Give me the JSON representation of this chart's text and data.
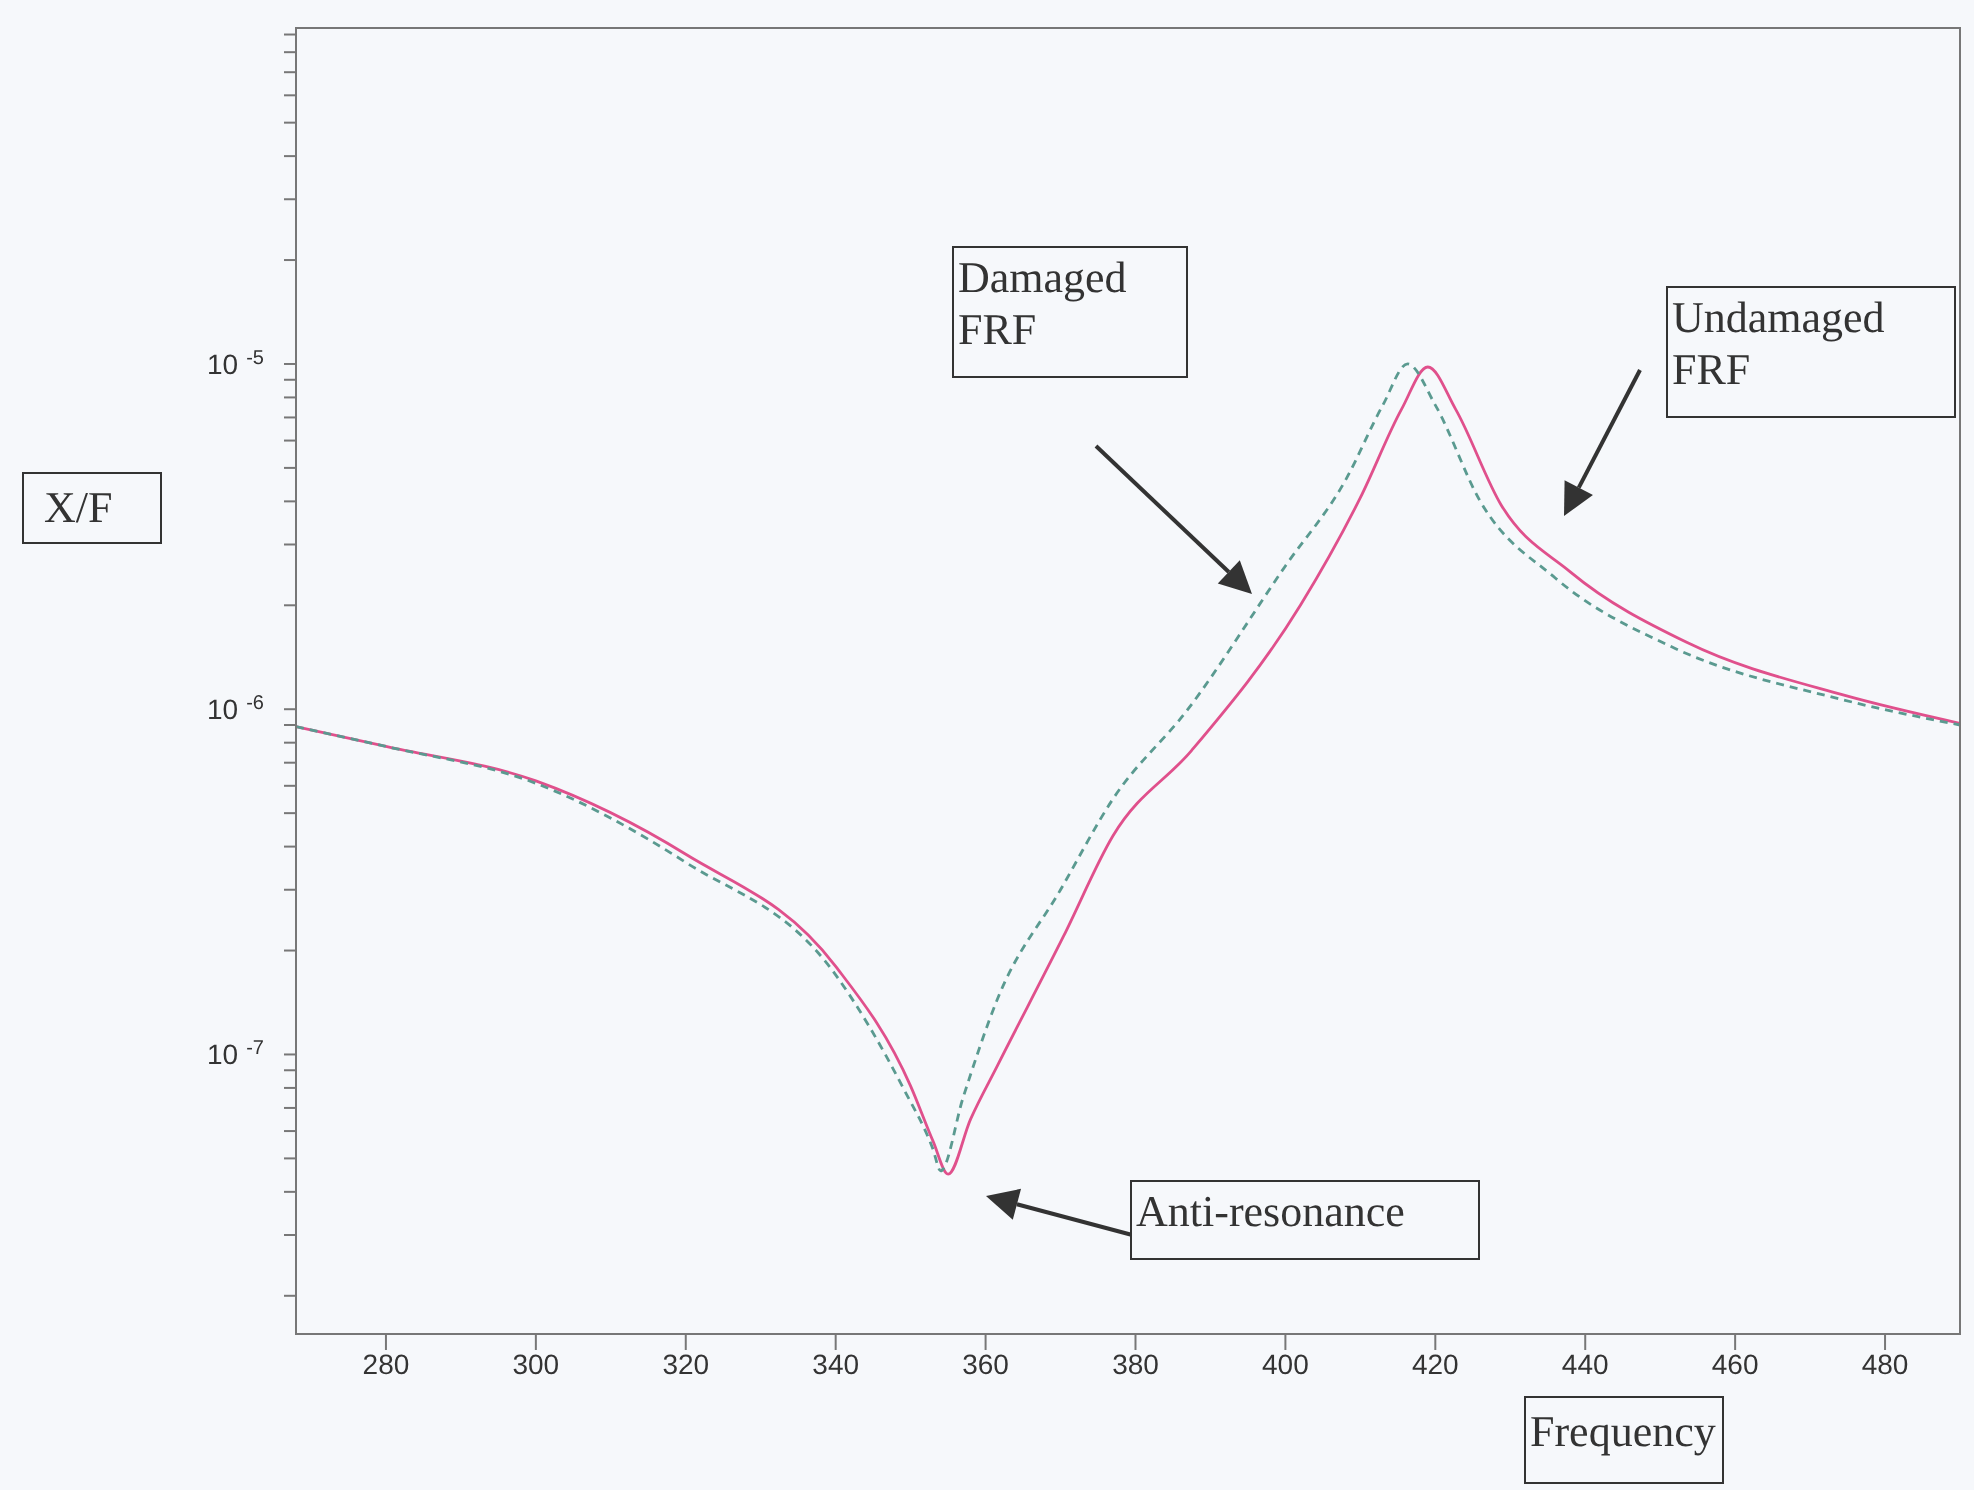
{
  "chart_data": {
    "type": "line",
    "xlabel": "Frequency",
    "ylabel": "X/F",
    "log": "y",
    "marker": "none",
    "xlim": [
      268,
      490
    ],
    "xticks": [
      280,
      300,
      320,
      340,
      360,
      380,
      400,
      420,
      440,
      460,
      480
    ],
    "ylim": [
      1.55e-08,
      9.4e-05
    ],
    "yticks": [
      {
        "value": 2e-08,
        "label": null
      },
      {
        "value": 3e-08,
        "label": null
      },
      {
        "value": 4e-08,
        "label": null
      },
      {
        "value": 5e-08,
        "label": null
      },
      {
        "value": 6e-08,
        "label": null
      },
      {
        "value": 7e-08,
        "label": null
      },
      {
        "value": 8e-08,
        "label": null
      },
      {
        "value": 9e-08,
        "label": null
      },
      {
        "value": 1e-07,
        "label": "10$^{-7}$"
      },
      {
        "value": 2e-07,
        "label": null
      },
      {
        "value": 3e-07,
        "label": null
      },
      {
        "value": 4e-07,
        "label": null
      },
      {
        "value": 5e-07,
        "label": null
      },
      {
        "value": 6e-07,
        "label": null
      },
      {
        "value": 7e-07,
        "label": null
      },
      {
        "value": 8e-07,
        "label": null
      },
      {
        "value": 9e-07,
        "label": null
      },
      {
        "value": 1e-06,
        "label": "10$^{-6}$"
      },
      {
        "value": 2e-06,
        "label": null
      },
      {
        "value": 3e-06,
        "label": null
      },
      {
        "value": 4e-06,
        "label": null
      },
      {
        "value": 5e-06,
        "label": null
      },
      {
        "value": 6e-06,
        "label": null
      },
      {
        "value": 7e-06,
        "label": null
      },
      {
        "value": 8e-06,
        "label": null
      },
      {
        "value": 9e-06,
        "label": null
      },
      {
        "value": 1e-05,
        "label": "10$^{-5}$"
      },
      {
        "value": 2e-05,
        "label": null
      },
      {
        "value": 3e-05,
        "label": null
      },
      {
        "value": 4e-05,
        "label": null
      },
      {
        "value": 5e-05,
        "label": null
      },
      {
        "value": 6e-05,
        "label": null
      },
      {
        "value": 7e-05,
        "label": null
      },
      {
        "value": 8e-05,
        "label": null
      },
      {
        "value": 9e-05,
        "label": null
      }
    ],
    "series": [
      {
        "color": "#e0508c",
        "line_style": "solid",
        "x": [
          268,
          280,
          300,
          320,
          340,
          350,
          353,
          355,
          358,
          361.6,
          370.4,
          377,
          387.5,
          402,
          410,
          415.5,
          419,
          422.7,
          428.8,
          438,
          453.6,
          474.4,
          490
        ],
        "values": [
          8.9e-07,
          7.8e-07,
          6.2e-07,
          3.8e-07,
          1.8e-07,
          8.1e-08,
          5.6e-08,
          4.5e-08,
          6.5e-08,
          9.3e-08,
          2.2e-07,
          4.3e-07,
          7.6e-07,
          2e-06,
          4.1e-06,
          7.4e-06,
          9.8e-06,
          7.4e-06,
          3.9e-06,
          2.5e-06,
          1.56e-06,
          1.1e-06,
          9.1e-07
        ]
      },
      {
        "color": "#5a9a90",
        "line_style": "dashed",
        "x": [
          268,
          280,
          300,
          320,
          340,
          349,
          353,
          354,
          357,
          361.6,
          370,
          377,
          387,
          400,
          408,
          413,
          416.3,
          420,
          426,
          436,
          452,
          474,
          490
        ],
        "values": [
          8.9e-07,
          7.8e-07,
          6.1e-07,
          3.6e-07,
          1.7e-07,
          8e-08,
          5.3e-08,
          4.6e-08,
          7.5e-08,
          1.45e-07,
          3e-07,
          5.5e-07,
          1e-06,
          2.6e-06,
          4.6e-06,
          7.6e-06,
          1e-05,
          7.6e-06,
          4e-06,
          2.4e-06,
          1.5e-06,
          1.07e-06,
          9e-07
        ]
      }
    ],
    "annotations": [
      "Damaged FRF",
      "Undamaged FRF",
      "Anti-resonance"
    ]
  }
}
